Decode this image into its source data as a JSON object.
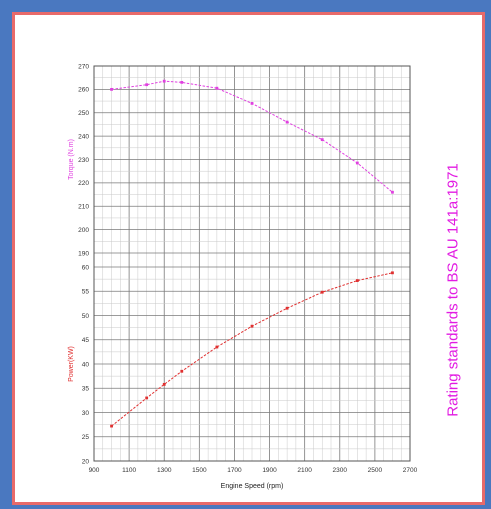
{
  "chart_data": {
    "type": "line",
    "xlabel": "Engine Speed (rpm)",
    "x_ticks": [
      "900",
      "1100",
      "1300",
      "1500",
      "1700",
      "1900",
      "2100",
      "2300",
      "2500",
      "2700"
    ],
    "xlim": [
      900,
      2700
    ],
    "annotation": "Rating standards to BS  AU 141a:1971",
    "grid": true,
    "panels": [
      {
        "ylabel": "Torque (N.m)",
        "ylim": [
          190,
          270
        ],
        "y_ticks": [
          "190",
          "200",
          "210",
          "220",
          "230",
          "240",
          "250",
          "260",
          "270"
        ],
        "series": [
          {
            "color": "#e040e0",
            "x": [
              1000,
              1200,
              1300,
              1400,
              1600,
              1800,
              2000,
              2200,
              2400,
              2600
            ],
            "y": [
              260,
              262,
              263.5,
              263,
              260.5,
              254,
              246,
              238.5,
              228.5,
              216
            ]
          }
        ]
      },
      {
        "ylabel": "Power(KW)",
        "ylim": [
          20,
          60
        ],
        "y_ticks": [
          "20",
          "25",
          "30",
          "35",
          "40",
          "45",
          "50",
          "55",
          "60"
        ],
        "series": [
          {
            "color": "#e03030",
            "x": [
              1000,
              1200,
              1300,
              1400,
              1600,
              1800,
              2000,
              2200,
              2400,
              2600
            ],
            "y": [
              27.2,
              33,
              35.8,
              38.5,
              43.5,
              47.8,
              51.5,
              54.8,
              57.2,
              58.8
            ]
          }
        ]
      }
    ]
  }
}
